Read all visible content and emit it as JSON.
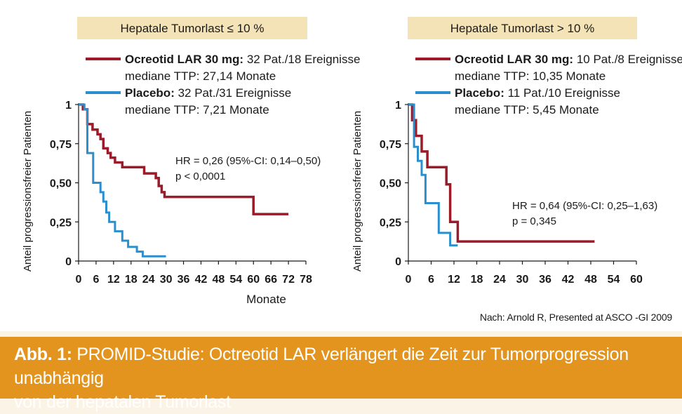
{
  "caption": {
    "label": "Abb. 1:",
    "line1": "PROMID-Studie: Octreotid LAR verlängert die Zeit zur Tumorprogression unabhängig",
    "line2": "von der hepatalen Tumorlast"
  },
  "source": "Nach: Arnold R, Presented at ASCO -GI 2009",
  "colors": {
    "ocreotide": "#9b1b2a",
    "placebo": "#2b8fce",
    "header_bg": "#f5e3b8",
    "caption_bg": "#e2941e",
    "page_bg": "#fbf3e6"
  },
  "chart_data": [
    {
      "type": "line",
      "step": true,
      "title": "Hepatale Tumorlast ≤ 10 %",
      "xlabel": "Monate",
      "ylabel": "Anteil progressionsfreier Patienten",
      "xlim": [
        0,
        78
      ],
      "ylim": [
        0,
        1
      ],
      "xticks": [
        0,
        6,
        12,
        18,
        24,
        30,
        36,
        42,
        48,
        54,
        60,
        66,
        72,
        78
      ],
      "yticks": [
        {
          "value": 0,
          "label": "0"
        },
        {
          "value": 0.25,
          "label": "0,25"
        },
        {
          "value": 0.5,
          "label": "0,50"
        },
        {
          "value": 0.75,
          "label": "0,75"
        },
        {
          "value": 1,
          "label": "1"
        }
      ],
      "legend": [
        {
          "series": "Ocreotid LAR 30 mg",
          "name": "Ocreotid LAR 30 mg:",
          "detail": " 32 Pat./18 Ereignisse",
          "median": "mediane TTP: 27,14 Monate"
        },
        {
          "series": "Placebo",
          "name": "Placebo:",
          "detail": " 32 Pat./31 Ereignisse",
          "median": "mediane TTP: 7,21 Monate"
        }
      ],
      "annotation": [
        "HR = 0,26 (95%-CI: 0,14–0,50)",
        "p < 0,0001"
      ],
      "series": [
        {
          "name": "Ocreotid LAR 30 mg",
          "points": [
            [
              0,
              1
            ],
            [
              1.5,
              1
            ],
            [
              1.5,
              0.97
            ],
            [
              3,
              0.97
            ],
            [
              3,
              0.875
            ],
            [
              4.8,
              0.875
            ],
            [
              4.8,
              0.84
            ],
            [
              6.5,
              0.84
            ],
            [
              6.5,
              0.81
            ],
            [
              7.5,
              0.81
            ],
            [
              7.5,
              0.78
            ],
            [
              8.5,
              0.78
            ],
            [
              8.5,
              0.72
            ],
            [
              10,
              0.72
            ],
            [
              10,
              0.69
            ],
            [
              11,
              0.69
            ],
            [
              11,
              0.66
            ],
            [
              12.5,
              0.66
            ],
            [
              12.5,
              0.63
            ],
            [
              15,
              0.63
            ],
            [
              15,
              0.6
            ],
            [
              22.5,
              0.6
            ],
            [
              22.5,
              0.56
            ],
            [
              26.5,
              0.56
            ],
            [
              26.5,
              0.53
            ],
            [
              27.5,
              0.53
            ],
            [
              27.5,
              0.48
            ],
            [
              28.5,
              0.48
            ],
            [
              28.5,
              0.44
            ],
            [
              29.5,
              0.44
            ],
            [
              29.5,
              0.41
            ],
            [
              60,
              0.41
            ],
            [
              60,
              0.3
            ],
            [
              72,
              0.3
            ]
          ]
        },
        {
          "name": "Placebo",
          "points": [
            [
              0,
              1
            ],
            [
              2,
              1
            ],
            [
              2,
              0.97
            ],
            [
              3,
              0.97
            ],
            [
              3,
              0.69
            ],
            [
              5,
              0.69
            ],
            [
              5,
              0.5
            ],
            [
              7.5,
              0.5
            ],
            [
              7.5,
              0.44
            ],
            [
              8.5,
              0.44
            ],
            [
              8.5,
              0.38
            ],
            [
              9.5,
              0.38
            ],
            [
              9.5,
              0.31
            ],
            [
              10.5,
              0.31
            ],
            [
              10.5,
              0.25
            ],
            [
              12.5,
              0.25
            ],
            [
              12.5,
              0.19
            ],
            [
              15,
              0.19
            ],
            [
              15,
              0.13
            ],
            [
              17,
              0.13
            ],
            [
              17,
              0.09
            ],
            [
              20,
              0.09
            ],
            [
              20,
              0.06
            ],
            [
              22,
              0.06
            ],
            [
              22,
              0.03
            ],
            [
              30,
              0.03
            ]
          ]
        }
      ]
    },
    {
      "type": "line",
      "step": true,
      "title": "Hepatale Tumorlast > 10 %",
      "xlabel": "Monate",
      "ylabel": "Anteil progressionsfreier Patienten",
      "xlim": [
        0,
        60
      ],
      "ylim": [
        0,
        1
      ],
      "xticks": [
        0,
        6,
        12,
        18,
        24,
        30,
        36,
        42,
        48,
        54,
        60
      ],
      "yticks": [
        {
          "value": 0,
          "label": "0"
        },
        {
          "value": 0.25,
          "label": "0,25"
        },
        {
          "value": 0.5,
          "label": "0,50"
        },
        {
          "value": 0.75,
          "label": "0,75"
        },
        {
          "value": 1,
          "label": "1"
        }
      ],
      "legend": [
        {
          "series": "Ocreotid LAR 30 mg",
          "name": "Ocreotid LAR 30 mg:",
          "detail": " 10 Pat./8 Ereignisse",
          "median": "mediane TTP: 10,35 Monate"
        },
        {
          "series": "Placebo",
          "name": "Placebo:",
          "detail": " 11 Pat./10 Ereignisse",
          "median": "mediane TTP: 5,45 Monate"
        }
      ],
      "annotation": [
        "HR = 0,64 (95%-CI: 0,25–1,63)",
        "p = 0,345"
      ],
      "series": [
        {
          "name": "Ocreotid LAR 30 mg",
          "points": [
            [
              0,
              1
            ],
            [
              1,
              1
            ],
            [
              1,
              0.9
            ],
            [
              2,
              0.9
            ],
            [
              2,
              0.8
            ],
            [
              3.5,
              0.8
            ],
            [
              3.5,
              0.7
            ],
            [
              5,
              0.7
            ],
            [
              5,
              0.6
            ],
            [
              10,
              0.6
            ],
            [
              10,
              0.49
            ],
            [
              11,
              0.49
            ],
            [
              11,
              0.25
            ],
            [
              13,
              0.25
            ],
            [
              13,
              0.125
            ],
            [
              49,
              0.125
            ]
          ]
        },
        {
          "name": "Placebo",
          "points": [
            [
              0,
              1
            ],
            [
              1.5,
              1
            ],
            [
              1.5,
              0.73
            ],
            [
              2.5,
              0.73
            ],
            [
              2.5,
              0.64
            ],
            [
              3.5,
              0.64
            ],
            [
              3.5,
              0.55
            ],
            [
              4.5,
              0.55
            ],
            [
              4.5,
              0.37
            ],
            [
              8,
              0.37
            ],
            [
              8,
              0.18
            ],
            [
              11,
              0.18
            ],
            [
              11,
              0.1
            ],
            [
              13,
              0.1
            ]
          ]
        }
      ]
    }
  ]
}
